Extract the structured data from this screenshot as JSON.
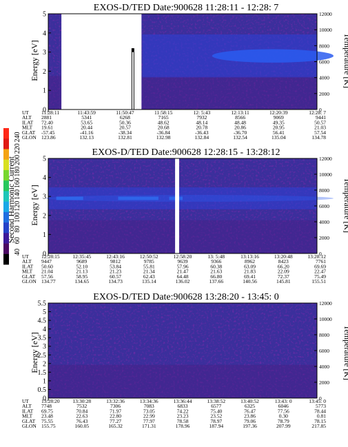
{
  "colorbar": {
    "label": "Second Harmonic Current",
    "ticks": [
      40,
      60,
      80,
      100,
      120,
      140,
      160,
      180,
      200,
      220,
      240
    ]
  },
  "chart_data": [
    {
      "type": "heatmap",
      "title": "EXOS-D/TED   Date:900628   11:28:11 - 12:28: 7",
      "ylabel": "Energy [eV]",
      "y2label": "Temperature [K]",
      "ylim": [
        0,
        5
      ],
      "y2lim": [
        0,
        12000
      ],
      "yticks": [
        0,
        1,
        2,
        3,
        4,
        5
      ],
      "y2ticks": [
        0,
        2000,
        4000,
        6000,
        8000,
        10000,
        12000
      ],
      "gaps": [
        {
          "from": 0.049,
          "to": 0.347
        }
      ],
      "spikes": [
        0.315
      ],
      "band": {
        "center": 2.8,
        "halfwidth": 0.35,
        "start": 0.62,
        "intensity": 0.85
      },
      "orbit": {
        "labels": [
          "UT",
          "ALT",
          "ILAT",
          "MLT",
          "GLAT",
          "GLON"
        ],
        "columns": [
          [
            "11:28:11",
            "2881",
            "72.40",
            "19.61",
            "-57.45",
            "123.86"
          ],
          [
            "11:43:59",
            "5341",
            "53.65",
            "20.44",
            "-41.16",
            "132.13"
          ],
          [
            "11:50:47",
            "6268",
            "50.36",
            "20.57",
            "-38.34",
            "132.81"
          ],
          [
            "11:58:15",
            "7165",
            "48.62",
            "20.68",
            "-36.84",
            "132.98"
          ],
          [
            "12: 5:43",
            "7932",
            "48.14",
            "20.78",
            "-36.43",
            "132.84"
          ],
          [
            "12:13:11",
            "8566",
            "48.48",
            "20.86",
            "-36.70",
            "132.54"
          ],
          [
            "12:20:39",
            "9069",
            "49.35",
            "20.95",
            "56.41",
            "135.04"
          ],
          [
            "12:28: 7",
            "9441",
            "50.57",
            "21.03",
            "57.54",
            "134.78"
          ]
        ]
      }
    },
    {
      "type": "heatmap",
      "title": "EXOS-D/TED   Date:900628   12:28:15 - 13:28:12",
      "ylabel": "Energy [eV]",
      "y2label": "Temperature [K]",
      "ylim": [
        0,
        5
      ],
      "y2lim": [
        0,
        12000
      ],
      "yticks": [
        0,
        1,
        2,
        3,
        4,
        5
      ],
      "y2ticks": [
        0,
        2000,
        4000,
        6000,
        8000,
        10000,
        12000
      ],
      "gaps": [
        {
          "from": 0.472,
          "to": 0.487
        }
      ],
      "spikes": [],
      "band": {
        "center": 2.9,
        "halfwidth": 0.18,
        "start": 0.0,
        "intensity": 0.35
      },
      "orbit": {
        "labels": [
          "UT",
          "ALT",
          "ILAT",
          "MLT",
          "GLAT",
          "GLON"
        ],
        "columns": [
          [
            "12:28:15",
            "9447",
            "50.60",
            "21.04",
            "57.56",
            "134.77"
          ],
          [
            "12:35:45",
            "9689",
            "52.10",
            "21.13",
            "58.95",
            "134.65"
          ],
          [
            "12:43:16",
            "9812",
            "53.84",
            "21.23",
            "60.57",
            "134.73"
          ],
          [
            "12:50:52",
            "9785",
            "55.81",
            "21.34",
            "62.43",
            "135.14"
          ],
          [
            "12:58:20",
            "9639",
            "57.96",
            "21.47",
            "64.48",
            "136.02"
          ],
          [
            "13: 5:48",
            "9366",
            "60.38",
            "21.63",
            "66.80",
            "137.66"
          ],
          [
            "13:13:16",
            "8962",
            "63.09",
            "21.83",
            "69.41",
            "140.56"
          ],
          [
            "13:20:48",
            "8423",
            "66.20",
            "22.09",
            "72.37",
            "145.81"
          ],
          [
            "13:28:12",
            "7761",
            "69.69",
            "22.47",
            "75.49",
            "155.51"
          ]
        ]
      }
    },
    {
      "type": "heatmap",
      "title": "EXOS-D/TED   Date:900628   13:28:20 - 13:45: 0",
      "ylabel": "Energy [eV]",
      "y2label": "Temperature [K]",
      "ylim": [
        0,
        5.5
      ],
      "y2lim": [
        0,
        12000
      ],
      "yticks": [
        0,
        0.5,
        1,
        1.5,
        2,
        2.5,
        3,
        3.5,
        4,
        4.5,
        5,
        5.5
      ],
      "y2ticks": [
        0,
        2000,
        4000,
        6000,
        8000,
        10000,
        12000
      ],
      "gaps": [],
      "spikes": [],
      "band": null,
      "orbit": {
        "labels": [
          "UT",
          "ALT",
          "ILAT",
          "MLT",
          "GLAT",
          "GLON"
        ],
        "columns": [
          [
            "13:28:20",
            "7748",
            "69.75",
            "23.48",
            "75.55",
            "155.75"
          ],
          [
            "13:30:28",
            "7532",
            "70.84",
            "22.63",
            "76.43",
            "160.05"
          ],
          [
            "13:32:36",
            "7306",
            "71.97",
            "22.80",
            "77.27",
            "165.32"
          ],
          [
            "13:34:36",
            "7083",
            "73.05",
            "22.99",
            "77.97",
            "171.31"
          ],
          [
            "13:36:44",
            "6833",
            "74.22",
            "23.23",
            "78.58",
            "178.96"
          ],
          [
            "13:38:52",
            "6577",
            "75.40",
            "23.52",
            "78.97",
            "187.94"
          ],
          [
            "13:40:52",
            "6325",
            "76.47",
            "23.86",
            "79.06",
            "197.36"
          ],
          [
            "13:43: 0",
            "6046",
            "77.56",
            "0.30",
            "78.79",
            "207.99"
          ],
          [
            "13:45: 0",
            "5773",
            "78.44",
            "0.81",
            "78.15",
            "217.85"
          ]
        ]
      }
    }
  ]
}
